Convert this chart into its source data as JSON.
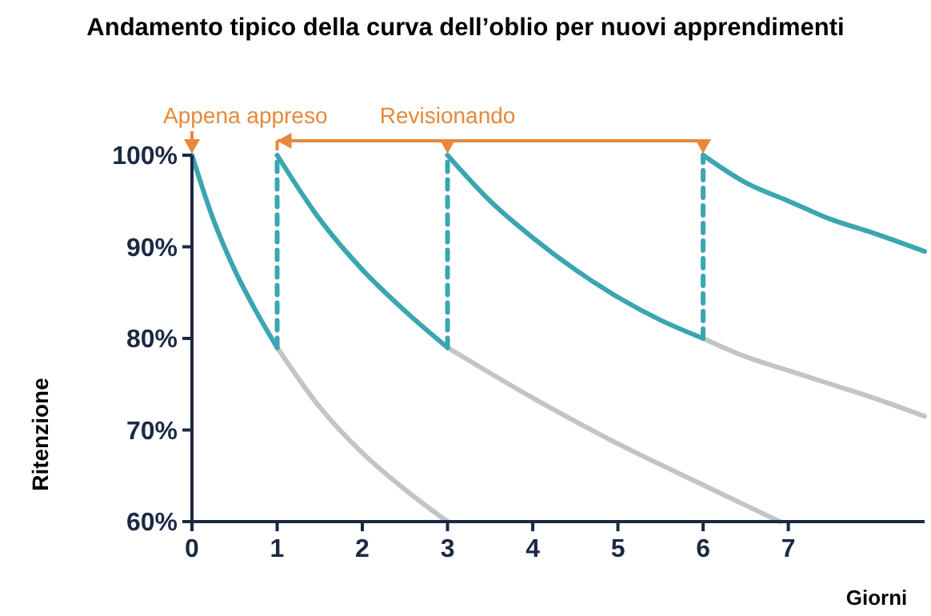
{
  "chart_data": {
    "type": "line",
    "title": "Andamento tipico della curva dell’oblio per nuovi apprendimenti",
    "xlabel": "Giorni",
    "ylabel": "Ritenzione",
    "xlim": [
      0,
      8.6
    ],
    "xticks": [
      0,
      1,
      2,
      3,
      4,
      5,
      6,
      7
    ],
    "ylim": [
      60,
      100
    ],
    "yticks": [
      {
        "value": 60,
        "label": "60%"
      },
      {
        "value": 70,
        "label": "70%"
      },
      {
        "value": 80,
        "label": "80%"
      },
      {
        "value": 90,
        "label": "90%"
      },
      {
        "value": 100,
        "label": "100%"
      }
    ],
    "grid": false,
    "marker": "none",
    "series": [
      {
        "color": "#c3c3c8",
        "x": [
          1,
          1.5,
          2,
          2.5,
          3
        ],
        "values": [
          79,
          72.5,
          67.5,
          63.5,
          60
        ]
      },
      {
        "color": "#c3c3c8",
        "x": [
          3,
          4,
          5,
          6,
          6.9
        ],
        "values": [
          79,
          73.5,
          68.5,
          64,
          60
        ]
      },
      {
        "color": "#c3c3c8",
        "x": [
          6,
          6.5,
          7,
          7.5,
          8,
          8.6
        ],
        "values": [
          80,
          78,
          76.5,
          75,
          73.5,
          71.5
        ]
      },
      {
        "color": "#3aa6b0",
        "x": [
          0,
          0.25,
          0.5,
          0.75,
          1
        ],
        "values": [
          100,
          93,
          87.5,
          83,
          79
        ]
      },
      {
        "color": "#3aa6b0",
        "x": [
          1,
          1.5,
          2,
          2.5,
          3
        ],
        "values": [
          100,
          93,
          87.5,
          83,
          79
        ]
      },
      {
        "color": "#3aa6b0",
        "x": [
          3,
          3.5,
          4,
          4.5,
          5,
          5.5,
          6
        ],
        "values": [
          100,
          95,
          91,
          87.5,
          84.5,
          82,
          80
        ]
      },
      {
        "color": "#3aa6b0",
        "x": [
          6,
          6.5,
          7,
          7.5,
          8,
          8.6
        ],
        "values": [
          100,
          97,
          95,
          93,
          91.5,
          89.5
        ]
      },
      {
        "color": "#3aa6b0",
        "line_style": "dashed",
        "x": [
          1,
          1
        ],
        "values": [
          79,
          100
        ]
      },
      {
        "color": "#3aa6b0",
        "line_style": "dashed",
        "x": [
          3,
          3
        ],
        "values": [
          79,
          100
        ]
      },
      {
        "color": "#3aa6b0",
        "line_style": "dashed",
        "x": [
          6,
          6
        ],
        "values": [
          80,
          100
        ]
      }
    ],
    "annotations": [
      {
        "text": "Appena appreso",
        "x": 0,
        "y": 100
      },
      {
        "text": "Revisionando",
        "x": 3,
        "y": 100
      }
    ]
  }
}
